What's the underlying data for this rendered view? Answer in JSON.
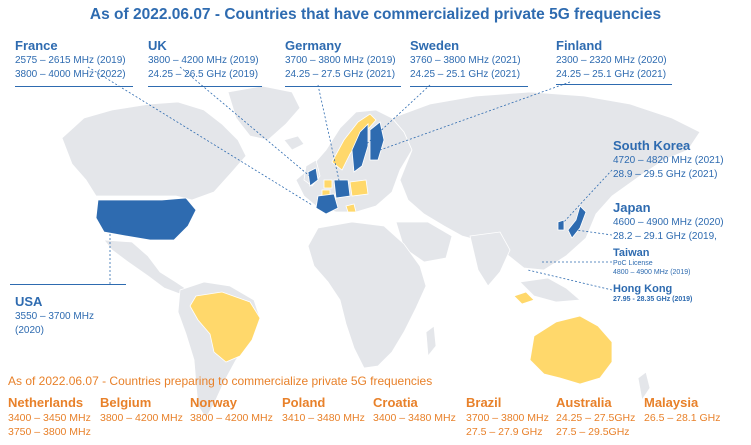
{
  "title": "As of 2022.06.07 - Countries that have commercialized private 5G frequencies",
  "subtitle": "As of 2022.06.07 - Countries preparing to commercialize private 5G frequencies",
  "commercialized": {
    "france": {
      "name": "France",
      "lines": [
        "2575 – 2615 MHz (2019)",
        "3800 – 4000 MHz (2022)"
      ]
    },
    "uk": {
      "name": "UK",
      "lines": [
        "3800 – 4200 MHz (2019)",
        "24.25 – 26.5 GHz (2019)"
      ]
    },
    "germany": {
      "name": "Germany",
      "lines": [
        "3700 – 3800 MHz (2019)",
        "24.25 – 27.5 GHz (2021)"
      ]
    },
    "sweden": {
      "name": "Sweden",
      "lines": [
        "3760 – 3800 MHz (2021)",
        "24.25 – 25.1 GHz (2021)"
      ]
    },
    "finland": {
      "name": "Finland",
      "lines": [
        "2300 – 2320 MHz (2020)",
        "24.25 – 25.1 GHz (2021)"
      ]
    },
    "south_korea": {
      "name": "South Korea",
      "lines": [
        "4720 – 4820 MHz (2021)",
        "28.9 – 29.5 GHz (2021)"
      ]
    },
    "japan": {
      "name": "Japan",
      "lines": [
        "4600 – 4900 MHz (2020)",
        "28.2 – 29.1 GHz (2019,"
      ]
    },
    "taiwan": {
      "name": "Taiwan",
      "lines": [
        "PoC License",
        "4800 – 4900 MHz (2019)"
      ]
    },
    "hong_kong": {
      "name": "Hong Kong",
      "lines": [
        "27.95 - 28.35 GHz (2019)"
      ]
    },
    "usa": {
      "name": "USA",
      "lines": [
        "3550 – 3700 MHz",
        "(2020)"
      ]
    }
  },
  "preparing": [
    {
      "name": "Netherlands",
      "lines": [
        "3400 – 3450 MHz",
        "3750 – 3800 MHz"
      ]
    },
    {
      "name": "Belgium",
      "lines": [
        "3800 – 4200 MHz"
      ]
    },
    {
      "name": "Norway",
      "lines": [
        "3800 – 4200 MHz"
      ]
    },
    {
      "name": "Poland",
      "lines": [
        "3410 – 3480 MHz"
      ]
    },
    {
      "name": "Croatia",
      "lines": [
        "3400 – 3480 MHz"
      ]
    },
    {
      "name": "Brazil",
      "lines": [
        "3700 – 3800 MHz",
        "27.5 – 27.9 GHz"
      ]
    },
    {
      "name": "Australia",
      "lines": [
        "24.25 – 27.5GHz",
        "27.5 – 29.5GHz"
      ]
    },
    {
      "name": "Malaysia",
      "lines": [
        "26.5 – 28.1 GHz"
      ]
    }
  ],
  "colors": {
    "commercialized": "#2e6bb0",
    "preparing": "#ffd86b",
    "land": "#e4e6ea",
    "accent_orange": "#e8812a"
  }
}
